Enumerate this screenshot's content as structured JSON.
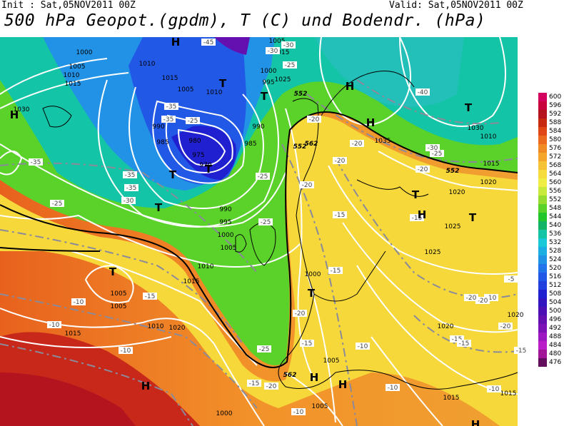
{
  "header": {
    "init": "Init : Sat,05NOV2011 00Z",
    "valid": "Valid: Sat,05NOV2011 00Z",
    "title": "500 hPa Geopot.(gpdm), T (C) und Bodendr. (hPa)"
  },
  "legend": {
    "values": [
      "600",
      "596",
      "592",
      "588",
      "584",
      "580",
      "576",
      "572",
      "568",
      "564",
      "560",
      "556",
      "552",
      "548",
      "544",
      "540",
      "536",
      "532",
      "528",
      "524",
      "520",
      "516",
      "512",
      "508",
      "504",
      "500",
      "496",
      "492",
      "488",
      "484",
      "480",
      "476"
    ],
    "colors": [
      "#d4005f",
      "#c8003c",
      "#b4141e",
      "#c82a10",
      "#e04616",
      "#ec6a1e",
      "#f08a24",
      "#f4a62c",
      "#f6c236",
      "#f6dc3c",
      "#f0ee44",
      "#c8ea3c",
      "#96dc30",
      "#5ad22a",
      "#22c62a",
      "#14b466",
      "#14c4a6",
      "#18c8d6",
      "#1aaee2",
      "#2092e6",
      "#2274ea",
      "#2258e6",
      "#2240de",
      "#2020d0",
      "#3414be",
      "#4c10b4",
      "#6410b0",
      "#7c12b6",
      "#9c18c0",
      "#ba1ec8",
      "#a01696",
      "#620e5c"
    ]
  },
  "map": {
    "pressure_labels": [
      "1000",
      "1005",
      "1010",
      "1015",
      "1030",
      "1010",
      "1015",
      "1005",
      "1010",
      "1000",
      "995",
      "990",
      "985",
      "980",
      "975",
      "970",
      "985",
      "990",
      "990",
      "995",
      "1000",
      "1005",
      "1010",
      "1015",
      "1000",
      "1005",
      "1005",
      "1010",
      "1015",
      "1020",
      "1020",
      "1025",
      "1030",
      "1035",
      "1010",
      "1015",
      "1020",
      "1025",
      "1020",
      "1015",
      "1015",
      "1020",
      "1005",
      "1005",
      "1005",
      "1015",
      "1000",
      "1025"
    ],
    "temp_labels": [
      "-45",
      "-35",
      "-30",
      "-25",
      "-35",
      "-25",
      "-30",
      "-35",
      "-30",
      "-25",
      "-25",
      "-20",
      "-25",
      "-20",
      "-15",
      "-20",
      "-15",
      "-10",
      "-10",
      "-15",
      "-10",
      "-20",
      "-15",
      "-10",
      "-25",
      "-20",
      "-15",
      "-10",
      "-5",
      "-15",
      "-10",
      "-10",
      "-20",
      "-20",
      "-15",
      "-15",
      "-35",
      "-40",
      "-30",
      "-25",
      "-20",
      "-20",
      "-15",
      "-10",
      "-20",
      "-35"
    ],
    "geopot_labels": [
      "552",
      "562",
      "552",
      "562",
      "552"
    ],
    "highs": [
      "H",
      "H",
      "H",
      "H",
      "H",
      "H",
      "H",
      "H",
      "H"
    ],
    "lows": [
      "T",
      "T",
      "T",
      "T",
      "T",
      "T",
      "T",
      "T",
      "T",
      "T"
    ]
  }
}
